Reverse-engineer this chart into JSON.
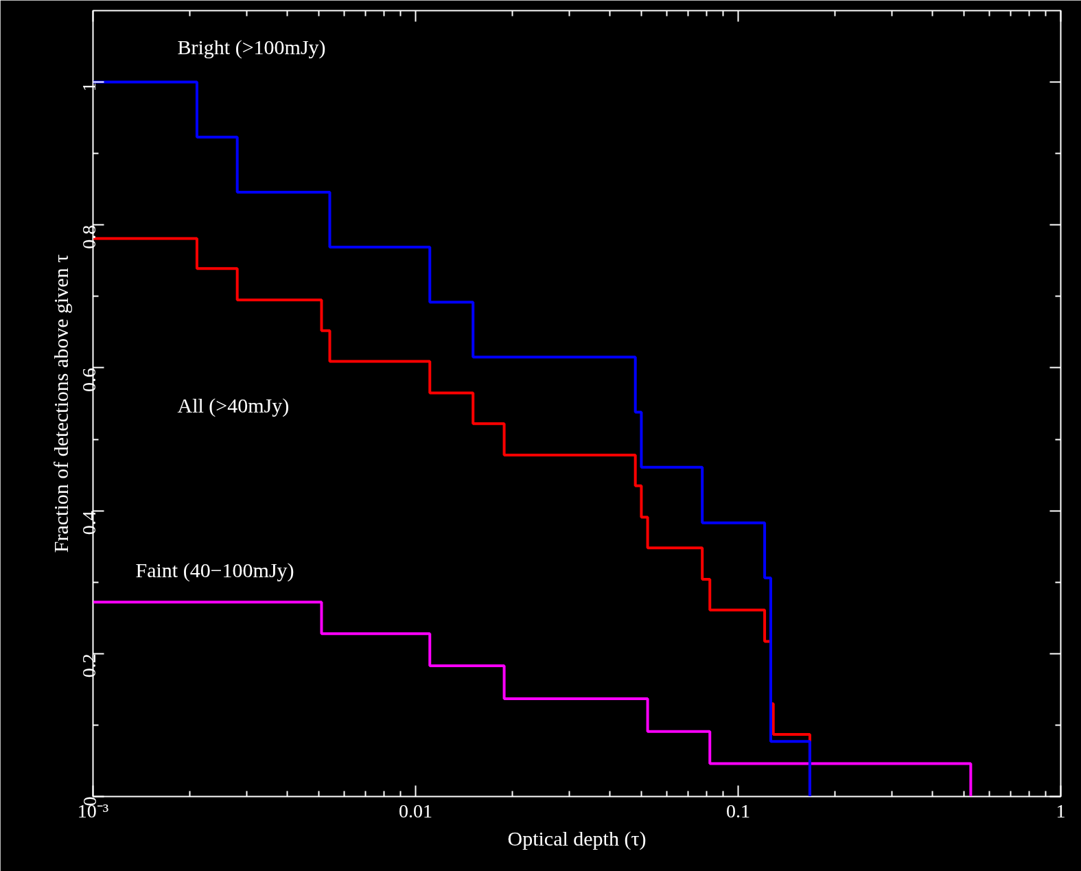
{
  "chart_data": {
    "type": "step",
    "xlabel": "Optical depth (τ)",
    "ylabel": "Fraction of detections above given τ",
    "log": "x",
    "xlim": [
      0.001,
      1
    ],
    "ylim": [
      0,
      1.1
    ],
    "xticks": [
      {
        "value": 0.001,
        "label": "10⁻³"
      },
      0.01,
      0.1,
      1
    ],
    "yticks": [
      0,
      0.2,
      0.4,
      0.6,
      0.8,
      1
    ],
    "grid": false,
    "legend": false,
    "marker": "none",
    "line_style": "solid",
    "series": [
      {
        "name": "Faint (40−100mJy)",
        "color": "#ff00ff",
        "x": [
          0.001,
          0.00511,
          0.01107,
          0.01882,
          0.0524,
          0.0817,
          0.526
        ],
        "values": [
          0.272,
          0.228,
          0.183,
          0.137,
          0.091,
          0.046,
          0
        ]
      },
      {
        "name": "All (>40mJy)",
        "color": "#ff0000",
        "x": [
          0.001,
          0.0021,
          0.0028,
          0.00511,
          0.00542,
          0.01107,
          0.01507,
          0.01882,
          0.048,
          0.0501,
          0.0524,
          0.0774,
          0.0817,
          0.1208,
          0.1262,
          0.1285,
          0.1668
        ],
        "values": [
          0.781,
          0.739,
          0.695,
          0.652,
          0.609,
          0.565,
          0.522,
          0.478,
          0.435,
          0.391,
          0.348,
          0.304,
          0.261,
          0.217,
          0.13,
          0.087,
          0
        ]
      },
      {
        "name": "Bright (>100mJy)",
        "color": "#0000ff",
        "x": [
          0.001,
          0.0021,
          0.0028,
          0.00542,
          0.01107,
          0.01507,
          0.048,
          0.0501,
          0.0774,
          0.1208,
          0.1262,
          0.1668
        ],
        "values": [
          1,
          0.923,
          0.846,
          0.769,
          0.692,
          0.615,
          0.538,
          0.461,
          0.383,
          0.306,
          0.077,
          0
        ]
      }
    ]
  }
}
